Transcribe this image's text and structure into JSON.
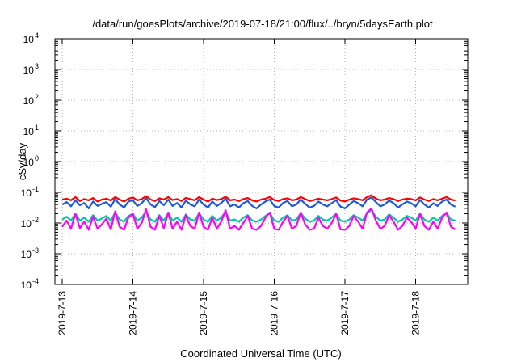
{
  "chart_data": {
    "type": "line",
    "title": "/data/run/goesPlots/archive/2019-07-18/21:00/flux/../bryn/5daysEarth.plot",
    "xlabel": "Coordinated Universal Time (UTC)",
    "ylabel": "cSv/day",
    "yscale": "log",
    "ylim": [
      0.0001,
      10000
    ],
    "xlim_days": [
      0,
      5.92
    ],
    "grid": true,
    "x_ticks": [
      {
        "day": 0,
        "label": "2019-7-13"
      },
      {
        "day": 1,
        "label": "2019-7-14"
      },
      {
        "day": 2,
        "label": "2019-7-15"
      },
      {
        "day": 3,
        "label": "2019-7-16"
      },
      {
        "day": 4,
        "label": "2019-7-17"
      },
      {
        "day": 5,
        "label": "2019-7-18"
      }
    ],
    "y_ticks": [
      {
        "value": 0.0001,
        "base": "10",
        "exp": "-4"
      },
      {
        "value": 0.001,
        "base": "10",
        "exp": "-3"
      },
      {
        "value": 0.01,
        "base": "10",
        "exp": "-2"
      },
      {
        "value": 0.1,
        "base": "10",
        "exp": "-1"
      },
      {
        "value": 1,
        "base": "10",
        "exp": "0"
      },
      {
        "value": 10,
        "base": "10",
        "exp": "1"
      },
      {
        "value": 100,
        "base": "10",
        "exp": "2"
      },
      {
        "value": 1000,
        "base": "10",
        "exp": "3"
      },
      {
        "value": 10000,
        "base": "10",
        "exp": "4"
      }
    ],
    "series": [
      {
        "color": "#ff0000",
        "day_start": 0,
        "day_step": 0.0625,
        "values": [
          0.058,
          0.062,
          0.055,
          0.07,
          0.052,
          0.06,
          0.055,
          0.065,
          0.05,
          0.058,
          0.062,
          0.054,
          0.07,
          0.058,
          0.05,
          0.062,
          0.068,
          0.055,
          0.06,
          0.075,
          0.058,
          0.052,
          0.064,
          0.058,
          0.07,
          0.056,
          0.06,
          0.052,
          0.066,
          0.06,
          0.055,
          0.07,
          0.058,
          0.05,
          0.062,
          0.056,
          0.06,
          0.072,
          0.055,
          0.058,
          0.052,
          0.06,
          0.065,
          0.055,
          0.05,
          0.058,
          0.062,
          0.07,
          0.056,
          0.052,
          0.06,
          0.064,
          0.055,
          0.058,
          0.07,
          0.06,
          0.052,
          0.056,
          0.062,
          0.058,
          0.055,
          0.06,
          0.068,
          0.054,
          0.05,
          0.058,
          0.064,
          0.06,
          0.055,
          0.07,
          0.08,
          0.062,
          0.055,
          0.058,
          0.065,
          0.06,
          0.052,
          0.058,
          0.062,
          0.06,
          0.055,
          0.068,
          0.058,
          0.052,
          0.06,
          0.055,
          0.062,
          0.07,
          0.058,
          0.054
        ]
      },
      {
        "color": "#1e5ad7",
        "day_start": 0,
        "day_step": 0.0625,
        "values": [
          0.04,
          0.048,
          0.035,
          0.055,
          0.038,
          0.045,
          0.03,
          0.05,
          0.036,
          0.042,
          0.048,
          0.034,
          0.06,
          0.04,
          0.032,
          0.05,
          0.055,
          0.036,
          0.044,
          0.065,
          0.04,
          0.033,
          0.052,
          0.038,
          0.058,
          0.036,
          0.045,
          0.032,
          0.054,
          0.04,
          0.035,
          0.058,
          0.04,
          0.032,
          0.05,
          0.036,
          0.045,
          0.062,
          0.035,
          0.04,
          0.032,
          0.044,
          0.052,
          0.036,
          0.03,
          0.04,
          0.05,
          0.058,
          0.036,
          0.032,
          0.045,
          0.052,
          0.035,
          0.04,
          0.058,
          0.042,
          0.032,
          0.036,
          0.05,
          0.04,
          0.035,
          0.044,
          0.056,
          0.034,
          0.03,
          0.04,
          0.052,
          0.044,
          0.035,
          0.058,
          0.068,
          0.048,
          0.035,
          0.04,
          0.054,
          0.044,
          0.032,
          0.04,
          0.05,
          0.044,
          0.035,
          0.056,
          0.04,
          0.032,
          0.044,
          0.036,
          0.05,
          0.058,
          0.04,
          0.034
        ]
      },
      {
        "color": "#00c8a0",
        "day_start": 0,
        "day_step": 0.0625,
        "values": [
          0.013,
          0.016,
          0.012,
          0.02,
          0.012,
          0.015,
          0.011,
          0.018,
          0.012,
          0.014,
          0.017,
          0.012,
          0.022,
          0.013,
          0.011,
          0.017,
          0.02,
          0.012,
          0.015,
          0.024,
          0.013,
          0.011,
          0.018,
          0.012,
          0.021,
          0.012,
          0.015,
          0.011,
          0.019,
          0.013,
          0.012,
          0.021,
          0.013,
          0.011,
          0.017,
          0.012,
          0.015,
          0.023,
          0.012,
          0.013,
          0.011,
          0.015,
          0.018,
          0.012,
          0.011,
          0.013,
          0.017,
          0.021,
          0.012,
          0.011,
          0.015,
          0.018,
          0.012,
          0.013,
          0.021,
          0.014,
          0.011,
          0.012,
          0.017,
          0.013,
          0.012,
          0.015,
          0.02,
          0.012,
          0.011,
          0.013,
          0.018,
          0.015,
          0.012,
          0.021,
          0.026,
          0.016,
          0.012,
          0.013,
          0.019,
          0.015,
          0.011,
          0.013,
          0.017,
          0.015,
          0.012,
          0.02,
          0.013,
          0.011,
          0.015,
          0.012,
          0.017,
          0.021,
          0.013,
          0.012
        ]
      },
      {
        "color": "#ff00ff",
        "day_start": 0,
        "day_step": 0.0625,
        "values": [
          0.0075,
          0.012,
          0.0065,
          0.02,
          0.0068,
          0.011,
          0.006,
          0.016,
          0.0065,
          0.009,
          0.014,
          0.0062,
          0.024,
          0.0075,
          0.006,
          0.015,
          0.02,
          0.0065,
          0.01,
          0.028,
          0.0075,
          0.006,
          0.017,
          0.0068,
          0.022,
          0.0065,
          0.011,
          0.006,
          0.018,
          0.008,
          0.0065,
          0.022,
          0.0075,
          0.006,
          0.015,
          0.0065,
          0.011,
          0.026,
          0.0065,
          0.008,
          0.006,
          0.01,
          0.017,
          0.0065,
          0.006,
          0.008,
          0.015,
          0.022,
          0.0065,
          0.006,
          0.011,
          0.017,
          0.0065,
          0.008,
          0.022,
          0.009,
          0.006,
          0.0065,
          0.015,
          0.008,
          0.0065,
          0.01,
          0.02,
          0.0062,
          0.006,
          0.008,
          0.017,
          0.011,
          0.0065,
          0.022,
          0.03,
          0.012,
          0.0065,
          0.008,
          0.018,
          0.011,
          0.006,
          0.008,
          0.015,
          0.011,
          0.0065,
          0.02,
          0.008,
          0.006,
          0.011,
          0.0065,
          0.015,
          0.022,
          0.0075,
          0.0062
        ]
      }
    ]
  }
}
